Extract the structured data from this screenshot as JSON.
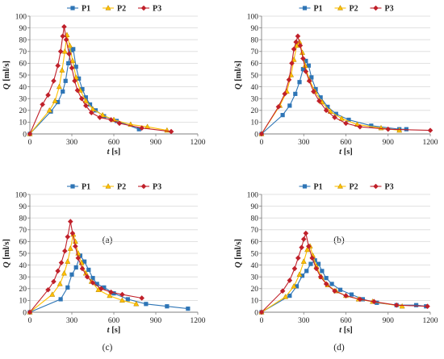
{
  "figure": {
    "panel_labels": [
      "(a)",
      "(b)",
      "(c)",
      "(d)"
    ]
  },
  "chart_data": [
    {
      "type": "line",
      "panel": "(a)",
      "xlabel_italic": "t",
      "xlabel_unit": "[s]",
      "ylabel_italic": "Q",
      "ylabel_unit": "[ml/s]",
      "xlim": [
        0,
        1200
      ],
      "ylim": [
        0,
        100
      ],
      "xticks": [
        0,
        300,
        600,
        900,
        1200
      ],
      "yticks": [
        0,
        10,
        20,
        30,
        40,
        50,
        60,
        70,
        80,
        90,
        100
      ],
      "legend_position": "top",
      "series": [
        {
          "name": "P1",
          "color": "#2e75b6",
          "marker": "square",
          "points": [
            [
              0,
              0
            ],
            [
              150,
              19
            ],
            [
              200,
              27
            ],
            [
              235,
              36
            ],
            [
              255,
              45
            ],
            [
              275,
              60
            ],
            [
              295,
              71
            ],
            [
              310,
              72
            ],
            [
              330,
              57
            ],
            [
              350,
              47
            ],
            [
              375,
              38
            ],
            [
              400,
              31
            ],
            [
              430,
              25
            ],
            [
              470,
              20
            ],
            [
              530,
              15
            ],
            [
              620,
              11
            ],
            [
              780,
              4
            ]
          ]
        },
        {
          "name": "P2",
          "color": "#ffc000",
          "marker": "triangle",
          "points": [
            [
              0,
              0
            ],
            [
              140,
              20
            ],
            [
              180,
              28
            ],
            [
              210,
              40
            ],
            [
              230,
              54
            ],
            [
              250,
              70
            ],
            [
              265,
              84
            ],
            [
              285,
              75
            ],
            [
              305,
              62
            ],
            [
              330,
              48
            ],
            [
              360,
              37
            ],
            [
              400,
              28
            ],
            [
              450,
              21
            ],
            [
              520,
              16
            ],
            [
              600,
              12
            ],
            [
              720,
              8
            ],
            [
              840,
              6
            ],
            [
              980,
              3
            ]
          ]
        },
        {
          "name": "P3",
          "color": "#c0202a",
          "marker": "diamond",
          "points": [
            [
              0,
              0
            ],
            [
              90,
              25
            ],
            [
              130,
              33
            ],
            [
              170,
              45
            ],
            [
              200,
              58
            ],
            [
              220,
              70
            ],
            [
              235,
              83
            ],
            [
              245,
              91
            ],
            [
              260,
              80
            ],
            [
              280,
              68
            ],
            [
              300,
              56
            ],
            [
              320,
              45
            ],
            [
              340,
              37
            ],
            [
              370,
              30
            ],
            [
              400,
              24
            ],
            [
              440,
              18
            ],
            [
              500,
              14
            ],
            [
              580,
              12
            ],
            [
              640,
              9
            ],
            [
              800,
              5
            ],
            [
              1010,
              2
            ]
          ]
        }
      ]
    },
    {
      "type": "line",
      "panel": "(b)",
      "xlabel_italic": "t",
      "xlabel_unit": "[s]",
      "ylabel_italic": "Q",
      "ylabel_unit": "[ml/s]",
      "xlim": [
        0,
        1200
      ],
      "ylim": [
        0,
        100
      ],
      "xticks": [
        0,
        300,
        600,
        900,
        1200
      ],
      "yticks": [
        0,
        10,
        20,
        30,
        40,
        50,
        60,
        70,
        80,
        90,
        100
      ],
      "legend_position": "top",
      "series": [
        {
          "name": "P1",
          "color": "#2e75b6",
          "marker": "square",
          "points": [
            [
              0,
              0
            ],
            [
              150,
              16
            ],
            [
              200,
              24
            ],
            [
              240,
              34
            ],
            [
              270,
              44
            ],
            [
              295,
              55
            ],
            [
              315,
              62
            ],
            [
              335,
              58
            ],
            [
              355,
              48
            ],
            [
              385,
              38
            ],
            [
              420,
              31
            ],
            [
              470,
              23
            ],
            [
              530,
              17
            ],
            [
              620,
              12
            ],
            [
              780,
              7
            ],
            [
              980,
              4
            ],
            [
              1030,
              4
            ]
          ]
        },
        {
          "name": "P2",
          "color": "#ffc000",
          "marker": "triangle",
          "points": [
            [
              0,
              0
            ],
            [
              130,
              24
            ],
            [
              180,
              36
            ],
            [
              210,
              50
            ],
            [
              230,
              63
            ],
            [
              250,
              75
            ],
            [
              270,
              78
            ],
            [
              290,
              69
            ],
            [
              310,
              58
            ],
            [
              340,
              46
            ],
            [
              380,
              36
            ],
            [
              430,
              27
            ],
            [
              490,
              19
            ],
            [
              570,
              13
            ],
            [
              680,
              8
            ],
            [
              850,
              5
            ],
            [
              980,
              3
            ]
          ]
        },
        {
          "name": "P3",
          "color": "#c0202a",
          "marker": "diamond",
          "points": [
            [
              0,
              0
            ],
            [
              120,
              23
            ],
            [
              165,
              34
            ],
            [
              195,
              46
            ],
            [
              215,
              60
            ],
            [
              230,
              72
            ],
            [
              245,
              78
            ],
            [
              258,
              83
            ],
            [
              275,
              75
            ],
            [
              295,
              64
            ],
            [
              315,
              53
            ],
            [
              340,
              45
            ],
            [
              370,
              36
            ],
            [
              410,
              28
            ],
            [
              460,
              20
            ],
            [
              520,
              14
            ],
            [
              600,
              9
            ],
            [
              700,
              6
            ],
            [
              900,
              4
            ],
            [
              1200,
              3
            ]
          ]
        }
      ]
    },
    {
      "type": "line",
      "panel": "(c)",
      "xlabel_italic": "t",
      "xlabel_unit": "[s]",
      "ylabel_italic": "Q",
      "ylabel_unit": "[ml/s]",
      "xlim": [
        0,
        1200
      ],
      "ylim": [
        0,
        100
      ],
      "xticks": [
        0,
        300,
        600,
        900,
        1200
      ],
      "yticks": [
        0,
        10,
        20,
        30,
        40,
        50,
        60,
        70,
        80,
        90,
        100
      ],
      "legend_position": "top",
      "series": [
        {
          "name": "P1",
          "color": "#2e75b6",
          "marker": "square",
          "points": [
            [
              0,
              0
            ],
            [
              220,
              11
            ],
            [
              270,
              21
            ],
            [
              300,
              32
            ],
            [
              330,
              38
            ],
            [
              360,
              48
            ],
            [
              390,
              43
            ],
            [
              420,
              36
            ],
            [
              450,
              29
            ],
            [
              480,
              24
            ],
            [
              530,
              21
            ],
            [
              600,
              16
            ],
            [
              700,
              11
            ],
            [
              830,
              7
            ],
            [
              980,
              5
            ],
            [
              1130,
              3
            ]
          ]
        },
        {
          "name": "P2",
          "color": "#ffc000",
          "marker": "triangle",
          "points": [
            [
              0,
              0
            ],
            [
              160,
              15
            ],
            [
              215,
              24
            ],
            [
              245,
              33
            ],
            [
              270,
              43
            ],
            [
              290,
              54
            ],
            [
              310,
              66
            ],
            [
              325,
              60
            ],
            [
              345,
              50
            ],
            [
              370,
              42
            ],
            [
              400,
              33
            ],
            [
              440,
              26
            ],
            [
              490,
              19
            ],
            [
              570,
              14
            ],
            [
              660,
              10
            ],
            [
              760,
              7
            ]
          ]
        },
        {
          "name": "P3",
          "color": "#c0202a",
          "marker": "diamond",
          "points": [
            [
              0,
              0
            ],
            [
              130,
              19
            ],
            [
              170,
              26
            ],
            [
              200,
              35
            ],
            [
              225,
              42
            ],
            [
              250,
              52
            ],
            [
              270,
              64
            ],
            [
              290,
              77
            ],
            [
              305,
              67
            ],
            [
              325,
              56
            ],
            [
              345,
              46
            ],
            [
              375,
              37
            ],
            [
              410,
              30
            ],
            [
              450,
              25
            ],
            [
              510,
              20
            ],
            [
              580,
              17
            ],
            [
              660,
              15
            ],
            [
              800,
              12
            ]
          ]
        }
      ]
    },
    {
      "type": "line",
      "panel": "(d)",
      "xlabel_italic": "t",
      "xlabel_unit": "[s]",
      "ylabel_italic": "Q",
      "ylabel_unit": "[ml/s]",
      "xlim": [
        0,
        1200
      ],
      "ylim": [
        0,
        100
      ],
      "xticks": [
        0,
        300,
        600,
        900,
        1200
      ],
      "yticks": [
        0,
        10,
        20,
        30,
        40,
        50,
        60,
        70,
        80,
        90,
        100
      ],
      "legend_position": "top",
      "series": [
        {
          "name": "P1",
          "color": "#2e75b6",
          "marker": "square",
          "points": [
            [
              0,
              0
            ],
            [
              200,
              14
            ],
            [
              250,
              22
            ],
            [
              290,
              31
            ],
            [
              320,
              35
            ],
            [
              350,
              41
            ],
            [
              380,
              44
            ],
            [
              405,
              41
            ],
            [
              430,
              35
            ],
            [
              460,
              29
            ],
            [
              500,
              24
            ],
            [
              560,
              19
            ],
            [
              640,
              15
            ],
            [
              720,
              11
            ],
            [
              820,
              8
            ],
            [
              960,
              6
            ],
            [
              1100,
              6
            ],
            [
              1170,
              5
            ]
          ]
        },
        {
          "name": "P2",
          "color": "#ffc000",
          "marker": "triangle",
          "points": [
            [
              0,
              0
            ],
            [
              170,
              13
            ],
            [
              230,
              22
            ],
            [
              270,
              32
            ],
            [
              300,
              43
            ],
            [
              325,
              53
            ],
            [
              345,
              56
            ],
            [
              365,
              48
            ],
            [
              390,
              39
            ],
            [
              425,
              30
            ],
            [
              470,
              23
            ],
            [
              530,
              18
            ],
            [
              600,
              14
            ],
            [
              690,
              11
            ],
            [
              790,
              9
            ],
            [
              1000,
              5
            ]
          ]
        },
        {
          "name": "P3",
          "color": "#c0202a",
          "marker": "diamond",
          "points": [
            [
              0,
              0
            ],
            [
              150,
              18
            ],
            [
              200,
              27
            ],
            [
              235,
              37
            ],
            [
              260,
              46
            ],
            [
              285,
              55
            ],
            [
              300,
              62
            ],
            [
              315,
              67
            ],
            [
              335,
              56
            ],
            [
              360,
              46
            ],
            [
              390,
              37
            ],
            [
              420,
              30
            ],
            [
              460,
              24
            ],
            [
              520,
              18
            ],
            [
              600,
              14
            ],
            [
              700,
              11
            ],
            [
              800,
              9
            ],
            [
              960,
              6
            ],
            [
              1180,
              5
            ]
          ]
        }
      ]
    }
  ]
}
